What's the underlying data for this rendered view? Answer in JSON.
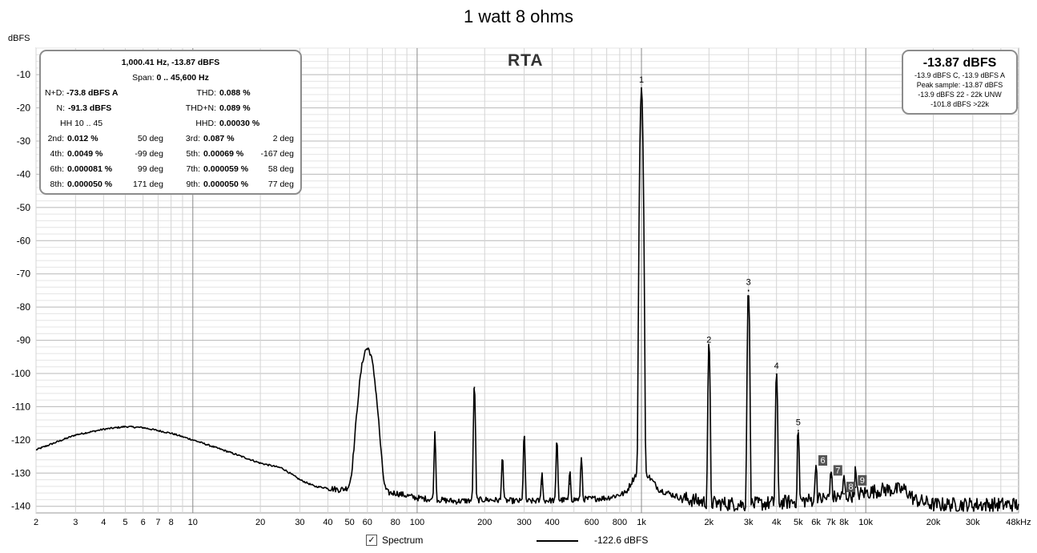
{
  "chart_data": {
    "type": "line",
    "title": "1 watt 8 ohms",
    "ylabel": "dBFS",
    "xlabel": "",
    "x_scale": "log",
    "xlim": [
      2,
      48000
    ],
    "ylim": [
      -142,
      -2
    ],
    "x_ticks": [
      {
        "v": 2,
        "label": "2"
      },
      {
        "v": 3,
        "label": "3"
      },
      {
        "v": 4,
        "label": "4"
      },
      {
        "v": 5,
        "label": "5"
      },
      {
        "v": 6,
        "label": "6"
      },
      {
        "v": 7,
        "label": "7"
      },
      {
        "v": 8,
        "label": "8"
      },
      {
        "v": 10,
        "label": "10"
      },
      {
        "v": 20,
        "label": "20"
      },
      {
        "v": 30,
        "label": "30"
      },
      {
        "v": 40,
        "label": "40"
      },
      {
        "v": 50,
        "label": "50"
      },
      {
        "v": 60,
        "label": "60"
      },
      {
        "v": 80,
        "label": "80"
      },
      {
        "v": 100,
        "label": "100"
      },
      {
        "v": 200,
        "label": "200"
      },
      {
        "v": 300,
        "label": "300"
      },
      {
        "v": 400,
        "label": "400"
      },
      {
        "v": 600,
        "label": "600"
      },
      {
        "v": 800,
        "label": "800"
      },
      {
        "v": 1000,
        "label": "1k"
      },
      {
        "v": 2000,
        "label": "2k"
      },
      {
        "v": 3000,
        "label": "3k"
      },
      {
        "v": 4000,
        "label": "4k"
      },
      {
        "v": 5000,
        "label": "5k"
      },
      {
        "v": 6000,
        "label": "6k"
      },
      {
        "v": 7000,
        "label": "7k"
      },
      {
        "v": 8000,
        "label": "8k"
      },
      {
        "v": 10000,
        "label": "10k"
      },
      {
        "v": 20000,
        "label": "20k"
      },
      {
        "v": 30000,
        "label": "30k"
      },
      {
        "v": 48000,
        "label": "48kHz"
      }
    ],
    "y_ticks": [
      -10,
      -20,
      -30,
      -40,
      -50,
      -60,
      -70,
      -80,
      -90,
      -100,
      -110,
      -120,
      -130,
      -140
    ],
    "grid": true,
    "series": [
      {
        "name": "Spectrum",
        "color": "#000000",
        "noise_floor": [
          [
            2,
            -123
          ],
          [
            3,
            -118.5
          ],
          [
            4,
            -116.8
          ],
          [
            5,
            -116
          ],
          [
            6,
            -116.3
          ],
          [
            8,
            -118
          ],
          [
            10,
            -120
          ],
          [
            15,
            -124
          ],
          [
            20,
            -127
          ],
          [
            25,
            -128.5
          ],
          [
            30,
            -132
          ],
          [
            35,
            -134
          ],
          [
            40,
            -134.5
          ],
          [
            45,
            -135
          ],
          [
            50,
            -134.5
          ],
          [
            55,
            -135
          ],
          [
            60,
            -135
          ],
          [
            70,
            -136
          ],
          [
            80,
            -136
          ],
          [
            100,
            -137.5
          ],
          [
            150,
            -138.5
          ],
          [
            200,
            -138
          ],
          [
            300,
            -138.5
          ],
          [
            500,
            -138
          ],
          [
            700,
            -137.5
          ],
          [
            850,
            -136
          ],
          [
            950,
            -130
          ],
          [
            1000,
            -127
          ],
          [
            1050,
            -130
          ],
          [
            1200,
            -135
          ],
          [
            1500,
            -137.5
          ],
          [
            2000,
            -139
          ],
          [
            3000,
            -139.5
          ],
          [
            5000,
            -138.5
          ],
          [
            8000,
            -137
          ],
          [
            12000,
            -135
          ],
          [
            15000,
            -135
          ],
          [
            16500,
            -138
          ],
          [
            20000,
            -139.5
          ],
          [
            48000,
            -139.5
          ]
        ],
        "peaks": [
          [
            60,
            -92.5
          ],
          [
            120,
            -119
          ],
          [
            180,
            -104
          ],
          [
            240,
            -126
          ],
          [
            300,
            -119
          ],
          [
            360,
            -133
          ],
          [
            420,
            -121
          ],
          [
            480,
            -133
          ],
          [
            540,
            -127
          ],
          [
            1000,
            -13.87
          ],
          [
            2000,
            -92.2
          ],
          [
            3000,
            -74.8
          ],
          [
            4000,
            -100
          ],
          [
            5000,
            -117
          ],
          [
            6000,
            -128
          ],
          [
            7000,
            -131
          ],
          [
            8000,
            -136
          ],
          [
            9000,
            -134
          ]
        ]
      }
    ],
    "harmonic_labels": [
      {
        "n": "1",
        "freq": 1000,
        "db": -13.87
      },
      {
        "n": "2",
        "freq": 2000,
        "db": -92.2
      },
      {
        "n": "3",
        "freq": 3000,
        "db": -74.8
      },
      {
        "n": "4",
        "freq": 4000,
        "db": -100
      },
      {
        "n": "5",
        "freq": 5000,
        "db": -117
      },
      {
        "n": "6",
        "freq": 6000,
        "db": -128
      },
      {
        "n": "7",
        "freq": 7000,
        "db": -131
      },
      {
        "n": "8",
        "freq": 8000,
        "db": -136
      },
      {
        "n": "9",
        "freq": 9000,
        "db": -134
      }
    ],
    "legend": {
      "label": "Spectrum",
      "checked": true,
      "value": "-122.6 dBFS"
    }
  },
  "mode_label": "RTA",
  "info_panel": {
    "header": "1,000.41 Hz, -13.87 dBFS",
    "span_label": "Span:",
    "span_value": "0 .. 45,600 Hz",
    "nd_label": "N+D:",
    "nd_value": "-73.8 dBFS A",
    "thd_label": "THD:",
    "thd_value": "0.088 %",
    "n_label": "N:",
    "n_value": "-91.3 dBFS",
    "thdn_label": "THD+N:",
    "thdn_value": "0.089 %",
    "hh_label": "HH 10 .. 45",
    "hhd_label": "HHD:",
    "hhd_value": "0.00030 %",
    "harmonics": [
      {
        "label": "2nd:",
        "value": "0.012 %",
        "phase": "50 deg",
        "label2": "3rd:",
        "value2": "0.087 %",
        "phase2": "2 deg"
      },
      {
        "label": "4th:",
        "value": "0.0049 %",
        "phase": "-99 deg",
        "label2": "5th:",
        "value2": "0.00069 %",
        "phase2": "-167 deg"
      },
      {
        "label": "6th:",
        "value": "0.000081 %",
        "phase": "99 deg",
        "label2": "7th:",
        "value2": "0.000059 %",
        "phase2": "58 deg"
      },
      {
        "label": "8th:",
        "value": "0.000050 %",
        "phase": "171 deg",
        "label2": "9th:",
        "value2": "0.000050 %",
        "phase2": "77 deg"
      }
    ]
  },
  "level_panel": {
    "main": "-13.87 dBFS",
    "line1": "-13.9 dBFS C, -13.9 dBFS A",
    "line2": "Peak sample: -13.87 dBFS",
    "line3": "-13.9 dBFS 22 - 22k UNW",
    "line4": "-101.8 dBFS >22k"
  },
  "checkbox_glyph": "✓"
}
